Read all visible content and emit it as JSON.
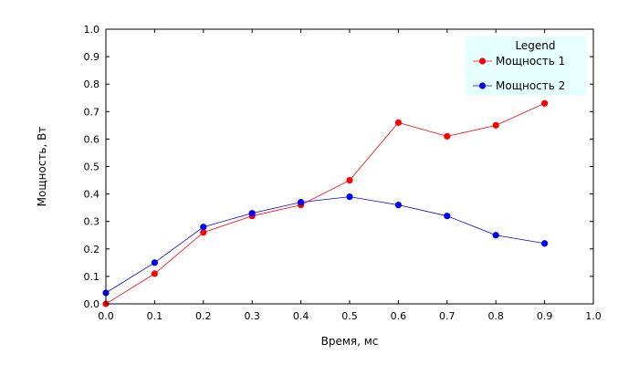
{
  "chart_data": {
    "type": "line",
    "xlabel": "Время, мс",
    "ylabel": "Мощность, Вт",
    "xlim": [
      0.0,
      1.0
    ],
    "ylim": [
      0.0,
      1.0
    ],
    "x_ticks": [
      "0.0",
      "0.1",
      "0.2",
      "0.3",
      "0.4",
      "0.5",
      "0.6",
      "0.7",
      "0.8",
      "0.9",
      "1.0"
    ],
    "y_ticks": [
      "0.0",
      "0.1",
      "0.2",
      "0.3",
      "0.4",
      "0.5",
      "0.6",
      "0.7",
      "0.8",
      "0.9",
      "1.0"
    ],
    "grid": false,
    "legend": {
      "title": "Legend",
      "position": "top-right",
      "background": "#e6ffff"
    },
    "series": [
      {
        "name": "Мощность 1",
        "color": "#ff0000",
        "x": [
          0.0,
          0.1,
          0.2,
          0.3,
          0.4,
          0.5,
          0.6,
          0.7,
          0.8,
          0.9
        ],
        "y": [
          0.0,
          0.11,
          0.26,
          0.32,
          0.36,
          0.45,
          0.66,
          0.61,
          0.65,
          0.73
        ]
      },
      {
        "name": "Мощность 2",
        "color": "#0000ff",
        "x": [
          0.0,
          0.1,
          0.2,
          0.3,
          0.4,
          0.5,
          0.6,
          0.7,
          0.8,
          0.9
        ],
        "y": [
          0.04,
          0.15,
          0.28,
          0.33,
          0.37,
          0.39,
          0.36,
          0.32,
          0.25,
          0.22
        ]
      }
    ]
  }
}
